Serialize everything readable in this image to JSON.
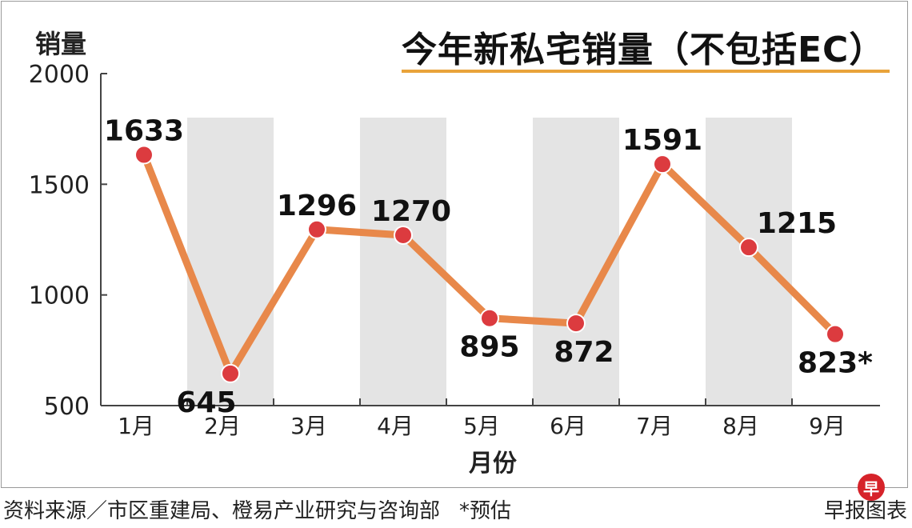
{
  "chart_data": {
    "type": "line",
    "title": "今年新私宅销量（不包括EC）",
    "ylabel": "销量",
    "xlabel": "月份",
    "ylim": [
      500,
      2000
    ],
    "yticks": [
      "500",
      "1000",
      "1500",
      "2000"
    ],
    "categories": [
      "1月",
      "2月",
      "3月",
      "4月",
      "5月",
      "6月",
      "7月",
      "8月",
      "9月"
    ],
    "values": [
      1633,
      645,
      1296,
      1270,
      895,
      872,
      1591,
      1215,
      823
    ],
    "value_labels": [
      "1633",
      "645",
      "1296",
      "1270",
      "895",
      "872",
      "1591",
      "1215",
      "823*"
    ],
    "grid": false,
    "colors": {
      "line": "#e8884a",
      "marker": "#dc3b3f",
      "band": "#e4e4e4",
      "title_rule": "#e9a33a"
    }
  },
  "footer": {
    "source": "资料来源／市区重建局、橙易产业研究与咨询部",
    "note": "*预估",
    "publisher": "早报图表",
    "badge": "早"
  }
}
